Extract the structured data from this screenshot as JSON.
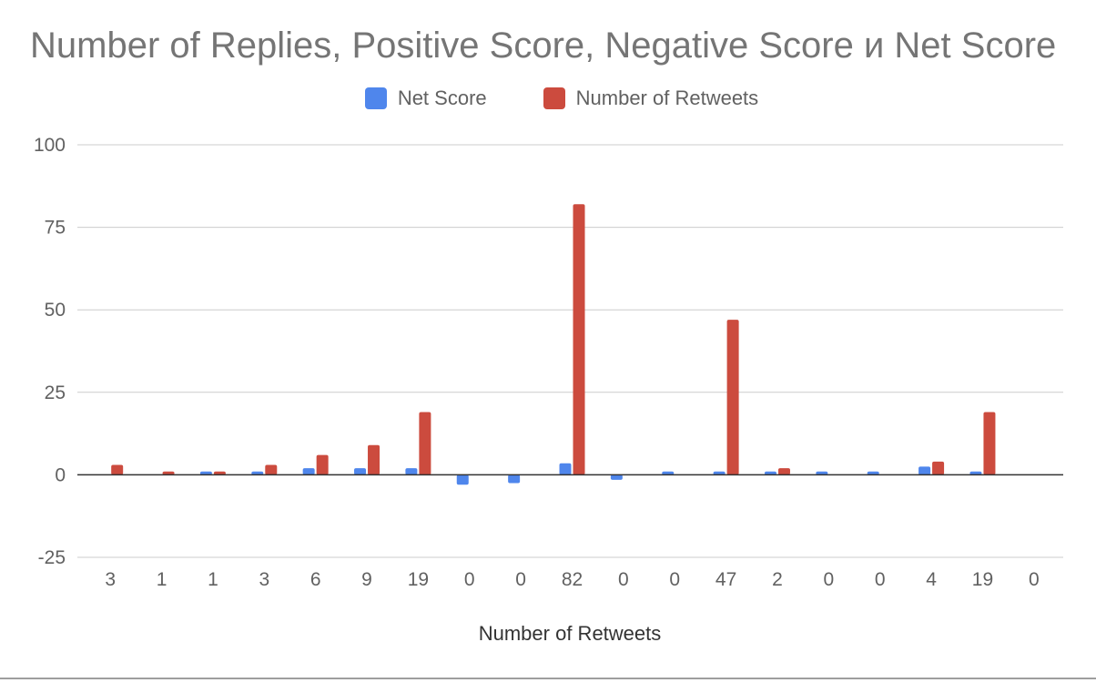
{
  "chart_data": {
    "type": "bar",
    "title": "Number of Replies, Positive Score, Negative Score и Net Score",
    "xlabel": "Number of Retweets",
    "ylabel": "",
    "ylim": [
      -25,
      100
    ],
    "yticks": [
      -25,
      0,
      25,
      50,
      75,
      100
    ],
    "grid": true,
    "legend_position": "top",
    "categories": [
      "3",
      "1",
      "1",
      "3",
      "6",
      "9",
      "19",
      "0",
      "0",
      "82",
      "0",
      "0",
      "47",
      "2",
      "0",
      "0",
      "4",
      "19",
      "0"
    ],
    "series": [
      {
        "name": "Net Score",
        "color": "#4f86ec",
        "values": [
          0,
          0,
          1,
          1,
          2,
          2,
          2,
          -3,
          -2.5,
          3.5,
          -1.5,
          1,
          1,
          1,
          1,
          1,
          2.5,
          1,
          0
        ]
      },
      {
        "name": "Number of Retweets",
        "color": "#cc4b3e",
        "values": [
          3,
          1,
          1,
          3,
          6,
          9,
          19,
          0,
          0,
          82,
          0,
          0,
          47,
          2,
          0,
          0,
          4,
          19,
          0
        ]
      }
    ]
  }
}
